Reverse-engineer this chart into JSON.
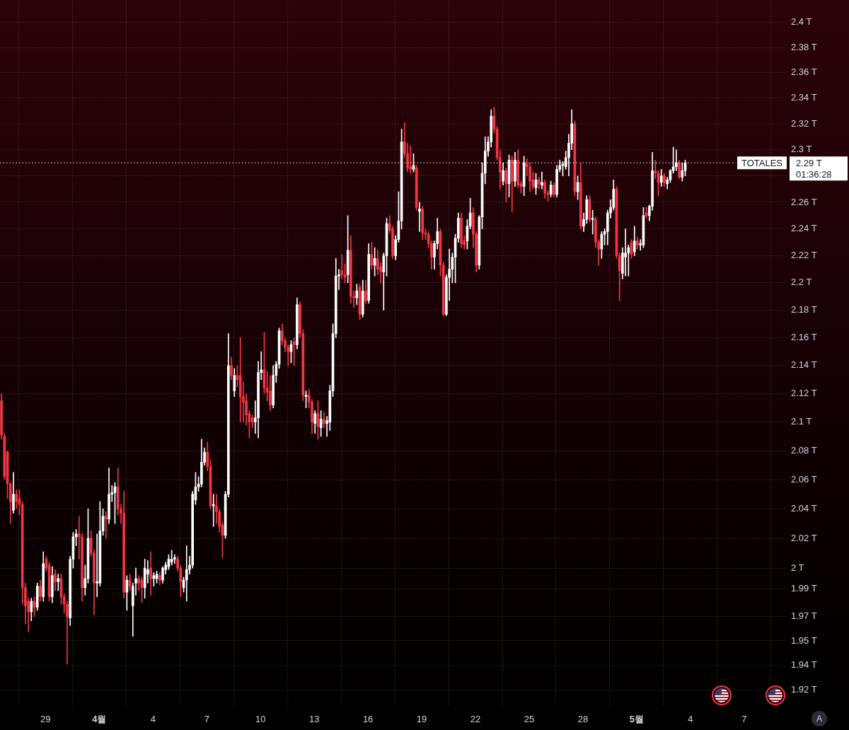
{
  "chart_data": {
    "type": "candlestick",
    "x": [
      "--03-26T13:00",
      "--03-26T17:00",
      "--03-26T21:00",
      "--03-27T01:00",
      "--03-27T05:00",
      "--03-27T09:00",
      "--03-27T13:00",
      "--03-27T17:00",
      "--03-27T21:00",
      "--03-28T01:00",
      "--03-28T05:00",
      "--03-28T09:00",
      "--03-28T13:00",
      "--03-28T17:00",
      "--03-28T21:00",
      "--03-29T01:00",
      "--03-29T05:00",
      "--03-29T09:00",
      "--03-29T13:00",
      "--03-29T17:00",
      "--03-29T21:00",
      "--03-30T01:00",
      "--03-30T05:00",
      "--03-30T09:00",
      "--03-30T13:00",
      "--03-30T17:00",
      "--03-30T21:00",
      "--03-31T01:00",
      "--03-31T05:00",
      "--03-31T09:00",
      "--03-31T13:00",
      "--03-31T17:00",
      "--03-31T21:00",
      "--04-01T01:00",
      "--04-01T05:00",
      "--04-01T09:00",
      "--04-01T13:00",
      "--04-01T17:00",
      "--04-01T21:00",
      "--04-02T01:00",
      "--04-02T05:00",
      "--04-02T09:00",
      "--04-02T13:00",
      "--04-02T17:00",
      "--04-02T21:00",
      "--04-03T01:00",
      "--04-03T05:00",
      "--04-03T09:00",
      "--04-03T13:00",
      "--04-03T17:00",
      "--04-03T21:00",
      "--04-04T01:00",
      "--04-04T05:00",
      "--04-04T09:00",
      "--04-04T13:00",
      "--04-04T17:00",
      "--04-04T21:00",
      "--04-05T01:00",
      "--04-05T05:00",
      "--04-05T09:00",
      "--04-05T13:00",
      "--04-05T17:00",
      "--04-05T21:00",
      "--04-06T01:00",
      "--04-06T05:00",
      "--04-06T09:00",
      "--04-06T13:00",
      "--04-06T17:00",
      "--04-06T21:00",
      "--04-07T01:00",
      "--04-07T05:00",
      "--04-07T09:00",
      "--04-07T13:00",
      "--04-07T17:00",
      "--04-07T21:00",
      "--04-08T01:00",
      "--04-08T05:00",
      "--04-08T09:00",
      "--04-08T13:00",
      "--04-08T17:00",
      "--04-08T21:00",
      "--04-09T01:00",
      "--04-09T05:00",
      "--04-09T09:00",
      "--04-09T13:00",
      "--04-09T17:00",
      "--04-09T21:00",
      "--04-10T01:00",
      "--04-10T05:00",
      "--04-10T09:00",
      "--04-10T13:00",
      "--04-10T17:00",
      "--04-10T21:00",
      "--04-11T01:00",
      "--04-11T05:00",
      "--04-11T09:00",
      "--04-11T13:00",
      "--04-11T17:00",
      "--04-11T21:00",
      "--04-12T01:00",
      "--04-12T05:00",
      "--04-12T09:00",
      "--04-12T13:00",
      "--04-12T17:00",
      "--04-12T21:00",
      "--04-13T01:00",
      "--04-13T05:00",
      "--04-13T09:00",
      "--04-13T13:00",
      "--04-13T17:00",
      "--04-13T21:00",
      "--04-14T01:00",
      "--04-14T05:00",
      "--04-14T09:00",
      "--04-14T13:00",
      "--04-14T17:00",
      "--04-14T21:00",
      "--04-15T01:00",
      "--04-15T05:00",
      "--04-15T09:00",
      "--04-15T13:00",
      "--04-15T17:00",
      "--04-15T21:00",
      "--04-16T01:00",
      "--04-16T05:00",
      "--04-16T09:00",
      "--04-16T13:00",
      "--04-16T17:00",
      "--04-16T21:00",
      "--04-17T01:00",
      "--04-17T05:00",
      "--04-17T09:00",
      "--04-17T13:00",
      "--04-17T17:00",
      "--04-17T21:00",
      "--04-18T01:00",
      "--04-18T05:00",
      "--04-18T09:00",
      "--04-18T13:00",
      "--04-18T17:00",
      "--04-18T21:00",
      "--04-19T01:00",
      "--04-19T05:00",
      "--04-19T09:00",
      "--04-19T13:00",
      "--04-19T17:00",
      "--04-19T21:00",
      "--04-20T01:00",
      "--04-20T05:00",
      "--04-20T09:00",
      "--04-20T13:00",
      "--04-20T17:00",
      "--04-20T21:00",
      "--04-21T01:00",
      "--04-21T05:00",
      "--04-21T09:00",
      "--04-21T13:00",
      "--04-21T17:00",
      "--04-21T21:00",
      "--04-22T01:00",
      "--04-22T05:00",
      "--04-22T09:00",
      "--04-22T13:00",
      "--04-22T17:00",
      "--04-22T21:00",
      "--04-23T01:00",
      "--04-23T05:00",
      "--04-23T09:00",
      "--04-23T13:00",
      "--04-23T17:00",
      "--04-23T21:00",
      "--04-24T01:00",
      "--04-24T05:00",
      "--04-24T09:00",
      "--04-24T13:00",
      "--04-24T17:00",
      "--04-24T21:00",
      "--04-25T01:00",
      "--04-25T05:00",
      "--04-25T09:00",
      "--04-25T13:00",
      "--04-25T17:00",
      "--04-25T21:00",
      "--04-26T01:00",
      "--04-26T05:00",
      "--04-26T09:00",
      "--04-26T13:00",
      "--04-26T17:00",
      "--04-26T21:00",
      "--04-27T01:00",
      "--04-27T05:00",
      "--04-27T09:00",
      "--04-27T13:00",
      "--04-27T17:00",
      "--04-27T21:00",
      "--04-28T01:00",
      "--04-28T05:00",
      "--04-28T09:00",
      "--04-28T13:00",
      "--04-28T17:00",
      "--04-28T21:00",
      "--04-29T01:00",
      "--04-29T05:00",
      "--04-29T09:00",
      "--04-29T13:00",
      "--04-29T17:00",
      "--04-29T21:00",
      "--04-30T01:00",
      "--04-30T05:00",
      "--04-30T09:00",
      "--04-30T13:00",
      "--04-30T17:00",
      "--04-30T21:00",
      "--05-01T01:00",
      "--05-01T05:00",
      "--05-01T09:00",
      "--05-01T13:00",
      "--05-01T17:00",
      "--05-01T21:00",
      "--05-02T01:00",
      "--05-02T05:00",
      "--05-02T09:00",
      "--05-02T13:00",
      "--05-02T17:00",
      "--05-02T21:00",
      "--05-03T01:00",
      "--05-03T05:00",
      "--05-03T09:00",
      "--05-03T13:00",
      "--05-03T17:00"
    ],
    "ohlc": [
      [
        2.115,
        2.12,
        2.088,
        2.091
      ],
      [
        2.09,
        2.092,
        2.06,
        2.062
      ],
      [
        2.079,
        2.08,
        2.047,
        2.057
      ],
      [
        2.057,
        2.058,
        2.03,
        2.045
      ],
      [
        2.039,
        2.065,
        2.037,
        2.05
      ],
      [
        2.05,
        2.053,
        2.04,
        2.045
      ],
      [
        2.047,
        2.053,
        2.036,
        2.043
      ],
      [
        2.043,
        2.045,
        1.976,
        1.987
      ],
      [
        1.987,
        1.99,
        1.963,
        1.975
      ],
      [
        1.978,
        1.98,
        1.958,
        1.971
      ],
      [
        1.971,
        1.98,
        1.965,
        1.978
      ],
      [
        1.978,
        1.981,
        1.968,
        1.974
      ],
      [
        1.974,
        1.99,
        1.972,
        1.988
      ],
      [
        1.988,
        1.992,
        1.978,
        1.981
      ],
      [
        1.981,
        2.011,
        1.978,
        2.003
      ],
      [
        2.006,
        2.008,
        1.998,
        2.0
      ],
      [
        2.002,
        2.004,
        1.978,
        1.981
      ],
      [
        1.981,
        2.001,
        1.977,
        1.995
      ],
      [
        1.996,
        1.999,
        1.985,
        1.991
      ],
      [
        1.991,
        1.996,
        1.985,
        1.993
      ],
      [
        1.993,
        1.996,
        1.976,
        1.981
      ],
      [
        1.981,
        1.983,
        1.97,
        1.976
      ],
      [
        1.976,
        1.978,
        1.937,
        1.968
      ],
      [
        1.967,
        2.008,
        1.962,
        2.006
      ],
      [
        2.006,
        2.024,
        2.0,
        2.021
      ],
      [
        2.021,
        2.026,
        2.015,
        2.023
      ],
      [
        2.023,
        2.035,
        2.006,
        2.021
      ],
      [
        2.021,
        2.023,
        1.978,
        1.987
      ],
      [
        1.987,
        2.002,
        1.982,
        1.993
      ],
      [
        1.993,
        2.04,
        1.99,
        2.02
      ],
      [
        2.02,
        2.025,
        2.008,
        2.01
      ],
      [
        2.01,
        2.012,
        1.969,
        1.99
      ],
      [
        1.99,
        2.023,
        1.981,
        1.991
      ],
      [
        1.99,
        2.045,
        1.988,
        2.025
      ],
      [
        2.025,
        2.04,
        2.022,
        2.035
      ],
      [
        2.035,
        2.038,
        2.02,
        2.033
      ],
      [
        2.033,
        2.068,
        2.03,
        2.05
      ],
      [
        2.05,
        2.056,
        2.045,
        2.051
      ],
      [
        2.051,
        2.058,
        2.03,
        2.055
      ],
      [
        2.055,
        2.068,
        2.036,
        2.04
      ],
      [
        2.04,
        2.043,
        2.03,
        2.037
      ],
      [
        2.037,
        2.052,
        1.98,
        1.984
      ],
      [
        1.984,
        1.995,
        1.972,
        1.992
      ],
      [
        1.992,
        1.996,
        1.985,
        1.988
      ],
      [
        1.975,
        1.99,
        1.955,
        1.988
      ],
      [
        1.99,
        2.0,
        1.982,
        1.993
      ],
      [
        1.993,
        1.995,
        1.985,
        1.99
      ],
      [
        1.992,
        1.994,
        1.977,
        1.987
      ],
      [
        1.987,
        2.006,
        1.98,
        2.0
      ],
      [
        1.996,
        2.005,
        1.99,
        1.999
      ],
      [
        2.0,
        2.011,
        1.982,
        1.993
      ],
      [
        1.993,
        1.997,
        1.988,
        1.995
      ],
      [
        1.993,
        1.998,
        1.99,
        1.996
      ],
      [
        1.995,
        1.997,
        1.989,
        1.992
      ],
      [
        1.992,
        2.001,
        1.99,
        2.0
      ],
      [
        1.999,
        2.004,
        1.996,
        2.002
      ],
      [
        2.001,
        2.009,
        1.999,
        2.006
      ],
      [
        2.004,
        2.012,
        2.002,
        2.006
      ],
      [
        2.006,
        2.009,
        2.003,
        2.007
      ],
      [
        2.006,
        2.008,
        1.998,
        2.0
      ],
      [
        2.0,
        2.002,
        1.981,
        1.991
      ],
      [
        1.987,
        1.994,
        1.984,
        1.992
      ],
      [
        1.992,
        2.015,
        1.978,
        1.999
      ],
      [
        1.999,
        2.008,
        1.996,
        2.002
      ],
      [
        2.002,
        2.052,
        2.0,
        2.05
      ],
      [
        2.046,
        2.065,
        2.043,
        2.055
      ],
      [
        2.055,
        2.062,
        2.052,
        2.057
      ],
      [
        2.057,
        2.088,
        2.055,
        2.072
      ],
      [
        2.072,
        2.082,
        2.07,
        2.079
      ],
      [
        2.079,
        2.086,
        2.066,
        2.069
      ],
      [
        2.069,
        2.074,
        2.04,
        2.042
      ],
      [
        2.042,
        2.05,
        2.028,
        2.043
      ],
      [
        2.042,
        2.05,
        2.03,
        2.038
      ],
      [
        2.038,
        2.04,
        2.024,
        2.028
      ],
      [
        2.029,
        2.031,
        2.007,
        2.022
      ],
      [
        2.022,
        2.052,
        2.02,
        2.05
      ],
      [
        2.05,
        2.163,
        2.048,
        2.14
      ],
      [
        2.14,
        2.146,
        2.13,
        2.133
      ],
      [
        2.122,
        2.138,
        2.118,
        2.133
      ],
      [
        2.133,
        2.14,
        2.125,
        2.13
      ],
      [
        2.133,
        2.16,
        2.1,
        2.118
      ],
      [
        2.118,
        2.128,
        2.1,
        2.114
      ],
      [
        2.115,
        2.12,
        2.098,
        2.105
      ],
      [
        2.106,
        2.108,
        2.089,
        2.1
      ],
      [
        2.103,
        2.105,
        2.096,
        2.1
      ],
      [
        2.1,
        2.115,
        2.092,
        2.103
      ],
      [
        2.103,
        2.143,
        2.089,
        2.135
      ],
      [
        2.135,
        2.15,
        2.13,
        2.137
      ],
      [
        2.137,
        2.164,
        2.12,
        2.124
      ],
      [
        2.124,
        2.136,
        2.115,
        2.121
      ],
      [
        2.122,
        2.133,
        2.108,
        2.112
      ],
      [
        2.112,
        2.14,
        2.11,
        2.133
      ],
      [
        2.133,
        2.143,
        2.128,
        2.141
      ],
      [
        2.141,
        2.167,
        2.138,
        2.165
      ],
      [
        2.165,
        2.17,
        2.155,
        2.158
      ],
      [
        2.158,
        2.16,
        2.15,
        2.153
      ],
      [
        2.153,
        2.155,
        2.14,
        2.15
      ],
      [
        2.15,
        2.158,
        2.142,
        2.155
      ],
      [
        2.157,
        2.16,
        2.14,
        2.155
      ],
      [
        2.155,
        2.189,
        2.152,
        2.184
      ],
      [
        2.184,
        2.186,
        2.16,
        2.163
      ],
      [
        2.163,
        2.166,
        2.115,
        2.119
      ],
      [
        2.118,
        2.122,
        2.11,
        2.119
      ],
      [
        2.119,
        2.123,
        2.11,
        2.114
      ],
      [
        2.114,
        2.116,
        2.092,
        2.1
      ],
      [
        2.099,
        2.108,
        2.092,
        2.106
      ],
      [
        2.106,
        2.115,
        2.088,
        2.097
      ],
      [
        2.096,
        2.108,
        2.09,
        2.102
      ],
      [
        2.102,
        2.107,
        2.096,
        2.099
      ],
      [
        2.099,
        2.104,
        2.09,
        2.101
      ],
      [
        2.1,
        2.126,
        2.094,
        2.122
      ],
      [
        2.122,
        2.17,
        2.118,
        2.163
      ],
      [
        2.163,
        2.218,
        2.16,
        2.205
      ],
      [
        2.205,
        2.21,
        2.195,
        2.206
      ],
      [
        2.209,
        2.221,
        2.203,
        2.206
      ],
      [
        2.206,
        2.214,
        2.2,
        2.204
      ],
      [
        2.206,
        2.25,
        2.2,
        2.224
      ],
      [
        2.224,
        2.235,
        2.185,
        2.19
      ],
      [
        2.19,
        2.194,
        2.182,
        2.189
      ],
      [
        2.189,
        2.199,
        2.184,
        2.194
      ],
      [
        2.197,
        2.199,
        2.173,
        2.177
      ],
      [
        2.177,
        2.202,
        2.175,
        2.194
      ],
      [
        2.194,
        2.202,
        2.185,
        2.187
      ],
      [
        2.187,
        2.229,
        2.185,
        2.221
      ],
      [
        2.221,
        2.23,
        2.21,
        2.213
      ],
      [
        2.213,
        2.226,
        2.205,
        2.218
      ],
      [
        2.218,
        2.224,
        2.206,
        2.21
      ],
      [
        2.212,
        2.215,
        2.2,
        2.208
      ],
      [
        2.208,
        2.222,
        2.18,
        2.22
      ],
      [
        2.22,
        2.248,
        2.205,
        2.244
      ],
      [
        2.244,
        2.25,
        2.237,
        2.239
      ],
      [
        2.24,
        2.242,
        2.218,
        2.22
      ],
      [
        2.22,
        2.235,
        2.217,
        2.232
      ],
      [
        2.232,
        2.268,
        2.23,
        2.246
      ],
      [
        2.246,
        2.316,
        2.24,
        2.306
      ],
      [
        2.306,
        2.321,
        2.294,
        2.297
      ],
      [
        2.297,
        2.305,
        2.283,
        2.286
      ],
      [
        2.287,
        2.303,
        2.282,
        2.285
      ],
      [
        2.285,
        2.297,
        2.283,
        2.288
      ],
      [
        2.286,
        2.288,
        2.254,
        2.256
      ],
      [
        2.253,
        2.26,
        2.238,
        2.255
      ],
      [
        2.255,
        2.257,
        2.232,
        2.237
      ],
      [
        2.237,
        2.24,
        2.232,
        2.236
      ],
      [
        2.236,
        2.238,
        2.226,
        2.229
      ],
      [
        2.229,
        2.231,
        2.21,
        2.219
      ],
      [
        2.219,
        2.231,
        2.21,
        2.229
      ],
      [
        2.229,
        2.248,
        2.225,
        2.238
      ],
      [
        2.238,
        2.24,
        2.205,
        2.213
      ],
      [
        2.213,
        2.215,
        2.176,
        2.177
      ],
      [
        2.177,
        2.206,
        2.176,
        2.204
      ],
      [
        2.204,
        2.225,
        2.187,
        2.21
      ],
      [
        2.21,
        2.222,
        2.2,
        2.219
      ],
      [
        2.219,
        2.236,
        2.2,
        2.233
      ],
      [
        2.233,
        2.252,
        2.23,
        2.248
      ],
      [
        2.248,
        2.252,
        2.226,
        2.229
      ],
      [
        2.231,
        2.235,
        2.225,
        2.228
      ],
      [
        2.231,
        2.247,
        2.225,
        2.242
      ],
      [
        2.242,
        2.263,
        2.24,
        2.252
      ],
      [
        2.252,
        2.256,
        2.226,
        2.236
      ],
      [
        2.236,
        2.238,
        2.208,
        2.213
      ],
      [
        2.213,
        2.25,
        2.21,
        2.249
      ],
      [
        2.249,
        2.29,
        2.24,
        2.282
      ],
      [
        2.282,
        2.31,
        2.274,
        2.299
      ],
      [
        2.299,
        2.31,
        2.295,
        2.306
      ],
      [
        2.306,
        2.331,
        2.302,
        2.326
      ],
      [
        2.326,
        2.333,
        2.313,
        2.316
      ],
      [
        2.316,
        2.318,
        2.292,
        2.294
      ],
      [
        2.294,
        2.3,
        2.27,
        2.283
      ],
      [
        2.276,
        2.29,
        2.273,
        2.284
      ],
      [
        2.284,
        2.286,
        2.26,
        2.274
      ],
      [
        2.274,
        2.296,
        2.264,
        2.292
      ],
      [
        2.292,
        2.295,
        2.253,
        2.276
      ],
      [
        2.276,
        2.298,
        2.272,
        2.292
      ],
      [
        2.292,
        2.3,
        2.271,
        2.273
      ],
      [
        2.274,
        2.276,
        2.267,
        2.272
      ],
      [
        2.272,
        2.295,
        2.265,
        2.29
      ],
      [
        2.289,
        2.293,
        2.28,
        2.287
      ],
      [
        2.287,
        2.29,
        2.268,
        2.276
      ],
      [
        2.277,
        2.283,
        2.27,
        2.272
      ],
      [
        2.271,
        2.282,
        2.266,
        2.277
      ],
      [
        2.277,
        2.279,
        2.27,
        2.274
      ],
      [
        2.273,
        2.283,
        2.27,
        2.275
      ],
      [
        2.275,
        2.277,
        2.263,
        2.267
      ],
      [
        2.267,
        2.269,
        2.261,
        2.266
      ],
      [
        2.266,
        2.276,
        2.264,
        2.273
      ],
      [
        2.273,
        2.275,
        2.264,
        2.266
      ],
      [
        2.266,
        2.288,
        2.264,
        2.285
      ],
      [
        2.285,
        2.292,
        2.283,
        2.288
      ],
      [
        2.288,
        2.291,
        2.28,
        2.289
      ],
      [
        2.287,
        2.299,
        2.285,
        2.294
      ],
      [
        2.294,
        2.312,
        2.28,
        2.305
      ],
      [
        2.305,
        2.331,
        2.3,
        2.32
      ],
      [
        2.32,
        2.322,
        2.265,
        2.268
      ],
      [
        2.268,
        2.28,
        2.262,
        2.275
      ],
      [
        2.275,
        2.29,
        2.24,
        2.242
      ],
      [
        2.242,
        2.252,
        2.238,
        2.247
      ],
      [
        2.247,
        2.265,
        2.244,
        2.262
      ],
      [
        2.262,
        2.265,
        2.245,
        2.247
      ],
      [
        2.247,
        2.254,
        2.236,
        2.248
      ],
      [
        2.247,
        2.249,
        2.226,
        2.23
      ],
      [
        2.23,
        2.232,
        2.213,
        2.225
      ],
      [
        2.225,
        2.238,
        2.218,
        2.236
      ],
      [
        2.236,
        2.24,
        2.228,
        2.238
      ],
      [
        2.238,
        2.254,
        2.228,
        2.252
      ],
      [
        2.252,
        2.262,
        2.248,
        2.256
      ],
      [
        2.256,
        2.277,
        2.254,
        2.27
      ],
      [
        2.27,
        2.272,
        2.218,
        2.22
      ],
      [
        2.22,
        2.222,
        2.187,
        2.209
      ],
      [
        2.207,
        2.226,
        2.203,
        2.222
      ],
      [
        2.219,
        2.24,
        2.205,
        2.222
      ],
      [
        2.222,
        2.228,
        2.205,
        2.226
      ],
      [
        2.23,
        2.232,
        2.218,
        2.221
      ],
      [
        2.223,
        2.242,
        2.22,
        2.231
      ],
      [
        2.231,
        2.234,
        2.225,
        2.228
      ],
      [
        2.228,
        2.232,
        2.224,
        2.229
      ],
      [
        2.228,
        2.256,
        2.226,
        2.25
      ],
      [
        2.252,
        2.256,
        2.248,
        2.25
      ],
      [
        2.25,
        2.258,
        2.246,
        2.257
      ],
      [
        2.257,
        2.298,
        2.254,
        2.284
      ],
      [
        2.284,
        2.292,
        2.278,
        2.282
      ],
      [
        2.282,
        2.284,
        2.265,
        2.275
      ],
      [
        2.275,
        2.285,
        2.272,
        2.28
      ],
      [
        2.28,
        2.282,
        2.272,
        2.275
      ],
      [
        2.274,
        2.279,
        2.27,
        2.277
      ],
      [
        2.277,
        2.285,
        2.275,
        2.284
      ],
      [
        2.284,
        2.302,
        2.282,
        2.287
      ],
      [
        2.287,
        2.3,
        2.284,
        2.29
      ],
      [
        2.29,
        2.292,
        2.278,
        2.279
      ],
      [
        2.279,
        2.29,
        2.276,
        2.284
      ],
      [
        2.284,
        2.292,
        2.28,
        2.29
      ]
    ],
    "colors": [
      "#f23645",
      "#f23645",
      "#f23645",
      "#f23645",
      "#ffffff",
      "#f23645",
      "#f23645",
      "#f23645",
      "#f23645",
      "#f23645",
      "#ffffff",
      "#f23645",
      "#ffffff",
      "#f23645",
      "#ffffff",
      "#f23645",
      "#f23645",
      "#ffffff",
      "#f23645",
      "#ffffff",
      "#f23645",
      "#f23645",
      "#f23645",
      "#ffffff",
      "#ffffff",
      "#ffffff",
      "#f23645",
      "#f23645",
      "#ffffff",
      "#ffffff",
      "#f23645",
      "#f23645",
      "#ffffff",
      "#ffffff",
      "#ffffff",
      "#f23645",
      "#ffffff",
      "#ffffff",
      "#ffffff",
      "#f23645",
      "#f23645",
      "#f23645",
      "#ffffff",
      "#f23645",
      "#ffffff",
      "#ffffff",
      "#f23645",
      "#f23645",
      "#ffffff",
      "#ffffff",
      "#f23645",
      "#ffffff",
      "#ffffff",
      "#f23645",
      "#ffffff",
      "#ffffff",
      "#ffffff",
      "#ffffff",
      "#ffffff",
      "#f23645",
      "#f23645",
      "#ffffff",
      "#ffffff",
      "#ffffff",
      "#ffffff",
      "#ffffff",
      "#ffffff",
      "#ffffff",
      "#ffffff",
      "#f23645",
      "#f23645",
      "#ffffff",
      "#f23645",
      "#f23645",
      "#f23645",
      "#ffffff",
      "#ffffff",
      "#f23645",
      "#ffffff",
      "#f23645",
      "#f23645",
      "#f23645",
      "#f23645",
      "#f23645",
      "#f23645",
      "#ffffff",
      "#ffffff",
      "#ffffff",
      "#f23645",
      "#f23645",
      "#f23645",
      "#ffffff",
      "#ffffff",
      "#ffffff",
      "#f23645",
      "#f23645",
      "#f23645",
      "#ffffff",
      "#f23645",
      "#ffffff",
      "#f23645",
      "#f23645",
      "#ffffff",
      "#f23645",
      "#f23645",
      "#ffffff",
      "#f23645",
      "#ffffff",
      "#f23645",
      "#ffffff",
      "#ffffff",
      "#ffffff",
      "#ffffff",
      "#ffffff",
      "#f23645",
      "#f23645",
      "#ffffff",
      "#f23645",
      "#f23645",
      "#ffffff",
      "#f23645",
      "#ffffff",
      "#f23645",
      "#ffffff",
      "#f23645",
      "#ffffff",
      "#f23645",
      "#f23645",
      "#ffffff",
      "#ffffff",
      "#f23645",
      "#f23645",
      "#ffffff",
      "#ffffff",
      "#ffffff",
      "#f23645",
      "#f23645",
      "#f23645",
      "#ffffff",
      "#f23645",
      "#ffffff",
      "#f23645",
      "#f23645",
      "#f23645",
      "#f23645",
      "#ffffff",
      "#ffffff",
      "#f23645",
      "#f23645",
      "#ffffff",
      "#ffffff",
      "#ffffff",
      "#ffffff",
      "#ffffff",
      "#f23645",
      "#f23645",
      "#ffffff",
      "#ffffff",
      "#f23645",
      "#f23645",
      "#ffffff",
      "#ffffff",
      "#ffffff",
      "#ffffff",
      "#ffffff",
      "#f23645",
      "#f23645",
      "#f23645",
      "#ffffff",
      "#f23645",
      "#ffffff",
      "#f23645",
      "#ffffff",
      "#f23645",
      "#f23645",
      "#ffffff",
      "#f23645",
      "#f23645",
      "#f23645",
      "#ffffff",
      "#f23645",
      "#ffffff",
      "#f23645",
      "#f23645",
      "#ffffff",
      "#f23645",
      "#ffffff",
      "#ffffff",
      "#ffffff",
      "#ffffff",
      "#ffffff",
      "#ffffff",
      "#f23645",
      "#ffffff",
      "#f23645",
      "#ffffff",
      "#ffffff",
      "#f23645",
      "#ffffff",
      "#f23645",
      "#f23645",
      "#ffffff",
      "#ffffff",
      "#ffffff",
      "#ffffff",
      "#ffffff",
      "#f23645",
      "#f23645",
      "#ffffff",
      "#ffffff",
      "#ffffff",
      "#f23645",
      "#ffffff",
      "#f23645",
      "#ffffff",
      "#ffffff",
      "#f23645",
      "#ffffff",
      "#ffffff",
      "#f23645",
      "#f23645",
      "#ffffff",
      "#f23645",
      "#ffffff",
      "#ffffff",
      "#ffffff",
      "#ffffff",
      "#f23645",
      "#ffffff",
      "#ffffff"
    ],
    "xlim": [
      "--03-26T11:00",
      "--05-09T09:00"
    ],
    "xticks": [
      {
        "value": "--03-29",
        "label": "29"
      },
      {
        "value": "--04-01",
        "label": "4월"
      },
      {
        "value": "--04-04",
        "label": "4"
      },
      {
        "value": "--04-07",
        "label": "7"
      },
      {
        "value": "--04-10",
        "label": "10"
      },
      {
        "value": "--04-13",
        "label": "13"
      },
      {
        "value": "--04-16",
        "label": "16"
      },
      {
        "value": "--04-19",
        "label": "19"
      },
      {
        "value": "--04-22",
        "label": "22"
      },
      {
        "value": "--04-25",
        "label": "25"
      },
      {
        "value": "--04-28",
        "label": "28"
      },
      {
        "value": "--05-01",
        "label": "5월"
      },
      {
        "value": "--05-04",
        "label": "4"
      },
      {
        "value": "--05-07",
        "label": "7"
      }
    ],
    "ylim": [
      1.91,
      2.418
    ],
    "yticks": [
      {
        "value": 1.92,
        "label": "1.92 T"
      },
      {
        "value": 1.936,
        "label": "1.94 T"
      },
      {
        "value": 1.952,
        "label": "1.95 T"
      },
      {
        "value": 1.968,
        "label": "1.97 T"
      },
      {
        "value": 1.986,
        "label": "1.99 T"
      },
      {
        "value": 2,
        "label": "2 T"
      },
      {
        "value": 2.02,
        "label": "2.02 T"
      },
      {
        "value": 2.04,
        "label": "2.04 T"
      },
      {
        "value": 2.06,
        "label": "2.06 T"
      },
      {
        "value": 2.08,
        "label": "2.08 T"
      },
      {
        "value": 2.1,
        "label": "2.1 T"
      },
      {
        "value": 2.12,
        "label": "2.12 T"
      },
      {
        "value": 2.14,
        "label": "2.14 T"
      },
      {
        "value": 2.16,
        "label": "2.16 T"
      },
      {
        "value": 2.18,
        "label": "2.18 T"
      },
      {
        "value": 2.2,
        "label": "2.2 T"
      },
      {
        "value": 2.22,
        "label": "2.22 T"
      },
      {
        "value": 2.24,
        "label": "2.24 T"
      },
      {
        "value": 2.26,
        "label": "2.26 T"
      },
      {
        "value": 2.28,
        "label": null
      },
      {
        "value": 2.3,
        "label": "2.3 T"
      },
      {
        "value": 2.32,
        "label": "2.32 T"
      },
      {
        "value": 2.34,
        "label": "2.34 T"
      },
      {
        "value": 2.36,
        "label": "2.36 T"
      },
      {
        "value": 2.38,
        "label": "2.38 T"
      },
      {
        "value": 2.4,
        "label": "2.4 T"
      }
    ],
    "log": true,
    "grid": true,
    "ref_lines": [
      {
        "axis": "y",
        "value": 2.29,
        "label": "TOTALES",
        "color": "#ffffff",
        "line_style": "dotted"
      }
    ],
    "annotations": [
      "2.29 T",
      "01:36:28",
      "A"
    ]
  }
}
